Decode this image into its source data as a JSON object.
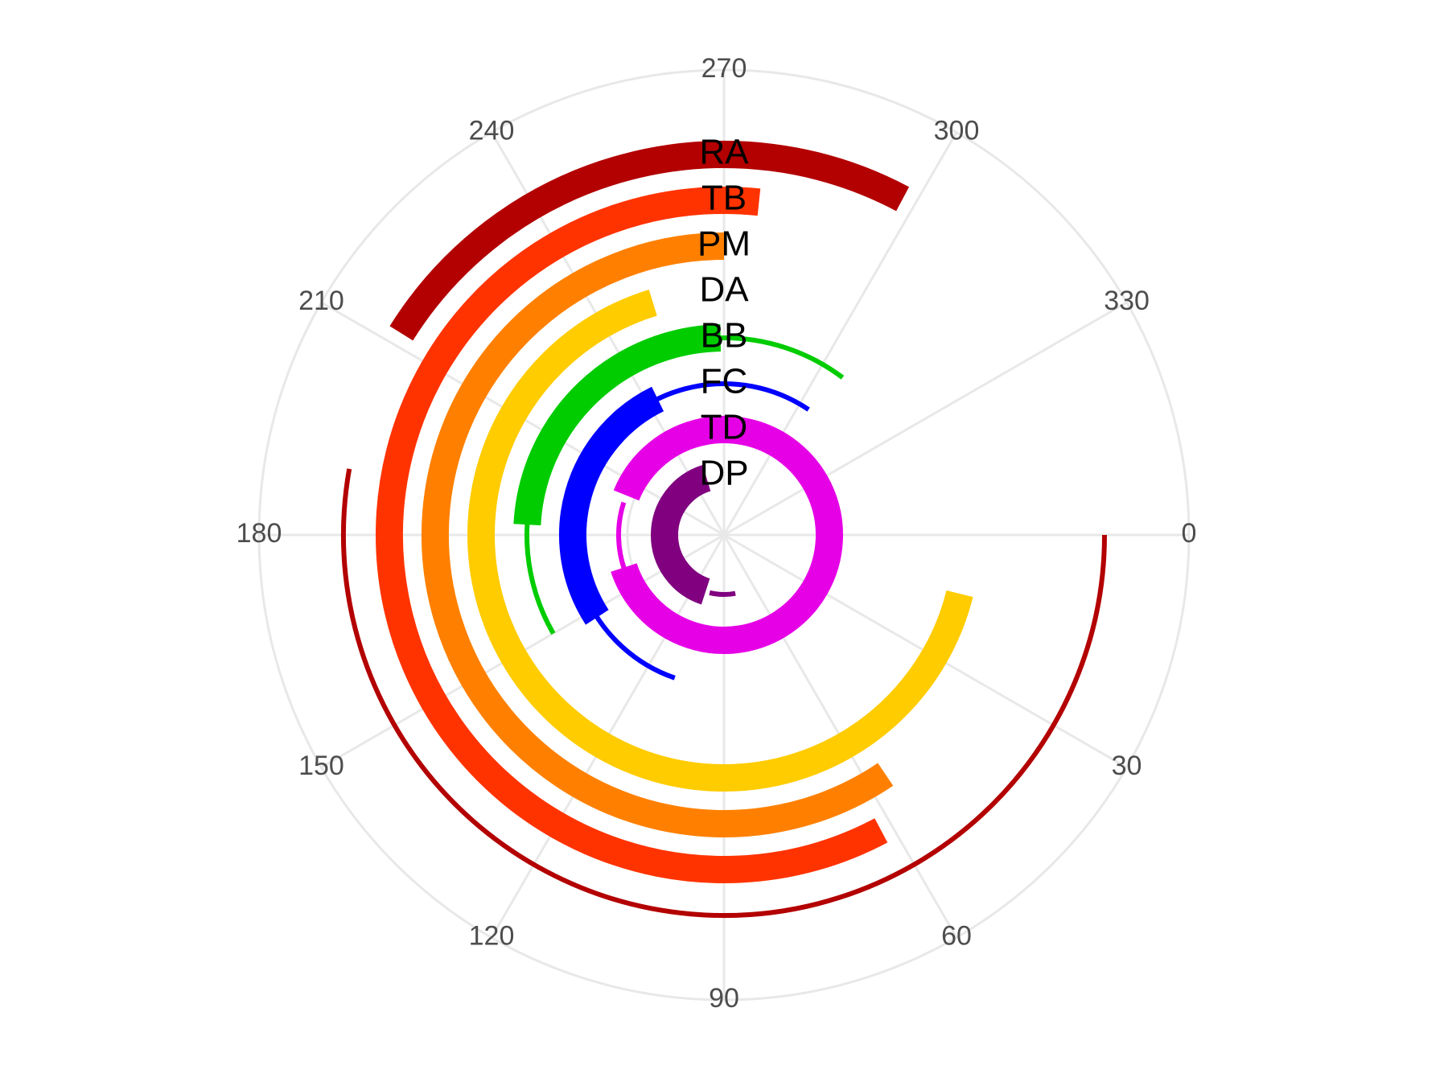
{
  "chart_data": {
    "type": "polar-arc",
    "angle_range": [
      0,
      360
    ],
    "angle_ticks": [
      "0",
      "30",
      "60",
      "90",
      "120",
      "150",
      "180",
      "210",
      "240",
      "270",
      "300",
      "330"
    ],
    "grid": true,
    "series": [
      {
        "name": "RA",
        "color": "#b30000",
        "thin_range": [
          0,
          190
        ],
        "thick_range": [
          212,
          298
        ]
      },
      {
        "name": "TB",
        "color": "#ff3300",
        "thin_range": [
          92,
          218
        ],
        "thick_range": [
          62,
          276
        ]
      },
      {
        "name": "PM",
        "color": "#ff8000",
        "thin_range": [
          88,
          222
        ],
        "thick_range": [
          56,
          270
        ]
      },
      {
        "name": "DA",
        "color": "#ffcc00",
        "thin_range": [
          55,
          188
        ],
        "thick_range": [
          14,
          253
        ]
      },
      {
        "name": "BB",
        "color": "#00cc00",
        "thin_range": [
          150,
          307
        ],
        "thick_range": [
          183,
          269
        ]
      },
      {
        "name": "FC",
        "color": "#0000ff",
        "thin_range": [
          109,
          304
        ],
        "thick_range": [
          147,
          244
        ]
      },
      {
        "name": "TD",
        "color": "#e600e6",
        "thin_range": [
          160,
          198
        ],
        "thick_range": [
          -158,
          162
        ]
      },
      {
        "name": "DP",
        "color": "#800080",
        "thin_range": [
          79,
          104
        ],
        "thick_range": [
          108,
          253
        ]
      }
    ]
  }
}
